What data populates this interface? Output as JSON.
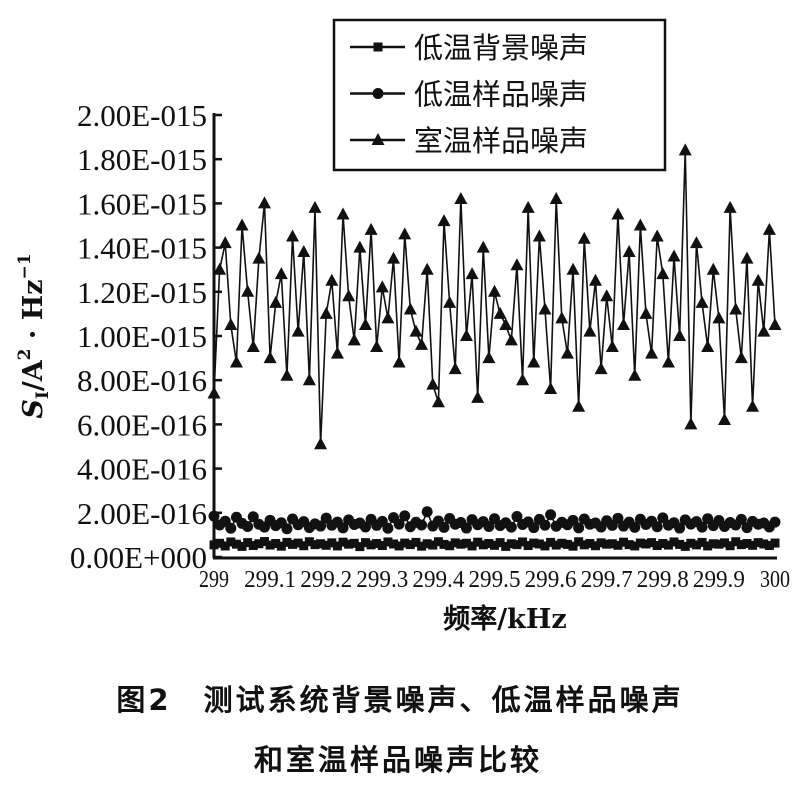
{
  "chart_data": {
    "type": "line",
    "xlabel": "频率/kHz",
    "ylabel": "S_I/A²·Hz⁻¹",
    "ylabel_parts": {
      "s": "S",
      "sub": "I",
      "unit": "/A",
      "sup2": "2",
      "dot": " · Hz",
      "sup": "−1"
    },
    "xlim": [
      299,
      300
    ],
    "ylim": [
      0,
      2e-15
    ],
    "x_ticks": [
      "299",
      "299.1",
      "299.2",
      "299.3",
      "299.4",
      "299.5",
      "299.6",
      "299.7",
      "299.8",
      "299.9",
      "300"
    ],
    "y_ticks": [
      "0.00E+000",
      "2.00E-016",
      "4.00E-016",
      "6.00E-016",
      "8.00E-016",
      "1.00E-015",
      "1.20E-015",
      "1.40E-015",
      "1.60E-015",
      "1.80E-015",
      "2.00E-015"
    ],
    "grid": false,
    "legend_position": "top",
    "x_start": 299,
    "x_step": 0.01,
    "series": [
      {
        "name": "低温背景噪声",
        "marker": "square",
        "values": [
          5.5e-17,
          6.2e-17,
          5e-17,
          6.8e-17,
          5.8e-17,
          4.8e-17,
          6.5e-17,
          5.2e-17,
          6e-17,
          7e-17,
          5.4e-17,
          6.1e-17,
          4.9e-17,
          6.6e-17,
          5.7e-17,
          6.3e-17,
          5.1e-17,
          6.9e-17,
          5.6e-17,
          6e-17,
          5.3e-17,
          6.4e-17,
          5e-17,
          6.7e-17,
          5.8e-17,
          6.2e-17,
          4.7e-17,
          6.5e-17,
          5.5e-17,
          6.1e-17,
          5.2e-17,
          6.8e-17,
          5.9e-17,
          5e-17,
          6.3e-17,
          5.6e-17,
          6.6e-17,
          4.9e-17,
          6e-17,
          5.4e-17,
          6.9e-17,
          5.7e-17,
          5.1e-17,
          6.4e-17,
          5.8e-17,
          6.2e-17,
          5e-17,
          6.7e-17,
          5.5e-17,
          6.1e-17,
          5.3e-17,
          6.5e-17,
          4.8e-17,
          6e-17,
          5.6e-17,
          6.8e-17,
          5.2e-17,
          6.3e-17,
          5.9e-17,
          5e-17,
          6.6e-17,
          5.4e-17,
          6.2e-17,
          5.7e-17,
          4.9e-17,
          6.9e-17,
          5.5e-17,
          6.1e-17,
          5.1e-17,
          6.4e-17,
          5.8e-17,
          6e-17,
          5.3e-17,
          6.7e-17,
          5.6e-17,
          5e-17,
          6.3e-17,
          5.9e-17,
          6.5e-17,
          5.2e-17,
          6.1e-17,
          5.4e-17,
          6.8e-17,
          5.7e-17,
          4.8e-17,
          6.2e-17,
          5.5e-17,
          6.6e-17,
          5e-17,
          6e-17,
          5.8e-17,
          6.4e-17,
          5.1e-17,
          6.9e-17,
          5.6e-17,
          6.1e-17,
          5.3e-17,
          6.5e-17,
          5.9e-17,
          5.2e-17,
          6.3e-17
        ]
      },
      {
        "name": "低温样品噪声",
        "marker": "circle",
        "values": [
          1.85e-16,
          1.45e-16,
          1.62e-16,
          1.3e-16,
          1.8e-16,
          1.52e-16,
          1.38e-16,
          1.82e-16,
          1.48e-16,
          1.35e-16,
          1.66e-16,
          1.42e-16,
          1.55e-16,
          1.28e-16,
          1.72e-16,
          1.46e-16,
          1.6e-16,
          1.33e-16,
          1.5e-16,
          1.4e-16,
          1.76e-16,
          1.44e-16,
          1.58e-16,
          1.32e-16,
          1.68e-16,
          1.47e-16,
          1.54e-16,
          1.36e-16,
          1.7e-16,
          1.43e-16,
          1.61e-16,
          1.3e-16,
          1.78e-16,
          1.49e-16,
          1.86e-16,
          1.37e-16,
          1.57e-16,
          1.45e-16,
          2.05e-16,
          1.4e-16,
          1.63e-16,
          1.34e-16,
          1.74e-16,
          1.48e-16,
          1.56e-16,
          1.31e-16,
          1.69e-16,
          1.46e-16,
          1.6e-16,
          1.38e-16,
          1.73e-16,
          1.42e-16,
          1.55e-16,
          1.35e-16,
          1.83e-16,
          1.47e-16,
          1.59e-16,
          1.33e-16,
          1.7e-16,
          1.44e-16,
          1.91e-16,
          1.39e-16,
          1.57e-16,
          1.46e-16,
          1.66e-16,
          1.32e-16,
          1.72e-16,
          1.48e-16,
          1.54e-16,
          1.36e-16,
          1.64e-16,
          1.43e-16,
          1.75e-16,
          1.4e-16,
          1.58e-16,
          1.34e-16,
          1.71e-16,
          1.47e-16,
          1.62e-16,
          1.37e-16,
          1.77e-16,
          1.44e-16,
          1.55e-16,
          1.31e-16,
          1.68e-16,
          1.49e-16,
          1.6e-16,
          1.35e-16,
          1.73e-16,
          1.42e-16,
          1.65e-16,
          1.38e-16,
          1.56e-16,
          1.45e-16,
          1.7e-16,
          1.33e-16,
          1.61e-16,
          1.48e-16,
          1.54e-16,
          1.36e-16,
          1.58e-16
        ]
      },
      {
        "name": "室温样品噪声",
        "marker": "triangle",
        "values": [
          7.4e-16,
          1.3e-15,
          1.42e-15,
          1.05e-15,
          8.8e-16,
          1.5e-15,
          1.2e-15,
          9.5e-16,
          1.35e-15,
          1.6e-15,
          9e-16,
          1.15e-15,
          1.28e-15,
          8.2e-16,
          1.45e-15,
          1.02e-15,
          1.38e-15,
          8e-16,
          1.58e-15,
          5.1e-16,
          1.1e-15,
          1.25e-15,
          9.2e-16,
          1.55e-15,
          1.18e-15,
          9.8e-16,
          1.4e-15,
          1.05e-15,
          1.48e-15,
          9.5e-16,
          1.22e-15,
          1.08e-15,
          1.35e-15,
          8.8e-16,
          1.46e-15,
          1.12e-15,
          1.02e-15,
          9.6e-16,
          1.3e-15,
          7.8e-16,
          7e-16,
          1.52e-15,
          1.15e-15,
          8.5e-16,
          1.62e-15,
          1e-15,
          1.28e-15,
          7.2e-16,
          1.4e-15,
          9e-16,
          1.2e-15,
          1.1e-15,
          1.05e-15,
          9.8e-16,
          1.32e-15,
          8e-16,
          1.58e-15,
          8.8e-16,
          1.45e-15,
          1.12e-15,
          7.6e-16,
          1.62e-15,
          1.08e-15,
          9.2e-16,
          1.3e-15,
          6.8e-16,
          1.44e-15,
          1.02e-15,
          1.25e-15,
          8.5e-16,
          1.18e-15,
          9.5e-16,
          1.55e-15,
          1.05e-15,
          1.38e-15,
          8.2e-16,
          1.5e-15,
          1.1e-15,
          9.2e-16,
          1.45e-15,
          1.28e-15,
          8.8e-16,
          1.36e-15,
          1e-15,
          1.84e-15,
          6e-16,
          1.42e-15,
          1.15e-15,
          9.5e-16,
          1.3e-15,
          1.08e-15,
          6.2e-16,
          1.58e-15,
          1.12e-15,
          9e-16,
          1.35e-15,
          6.8e-16,
          1.25e-15,
          1.02e-15,
          1.48e-15,
          1.05e-15
        ]
      }
    ]
  },
  "caption": {
    "line1": "图2　测试系统背景噪声、低温样品噪声",
    "line2": "和室温样品噪声比较"
  }
}
